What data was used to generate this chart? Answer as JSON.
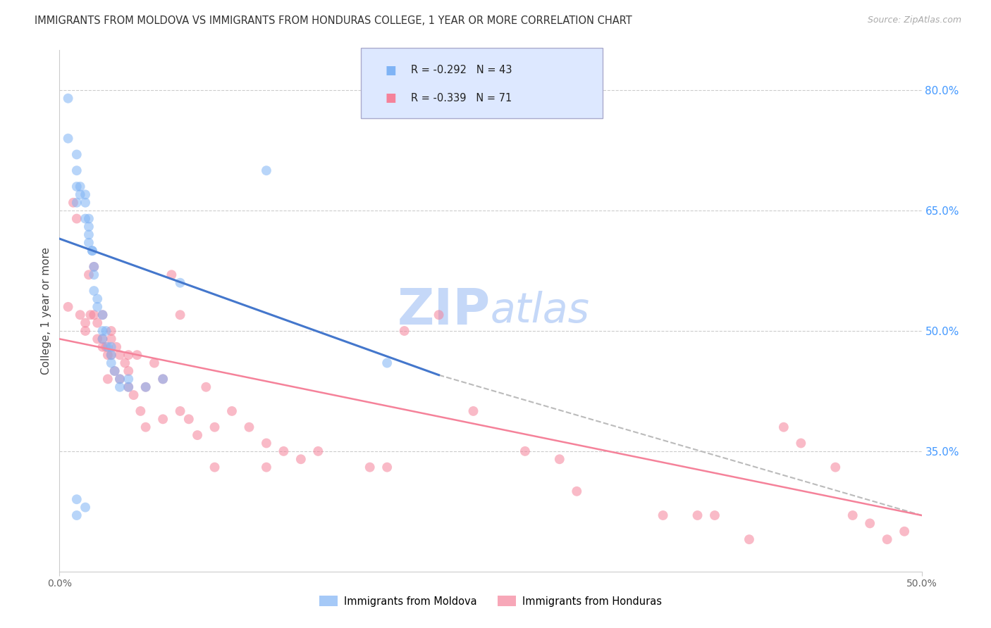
{
  "title": "IMMIGRANTS FROM MOLDOVA VS IMMIGRANTS FROM HONDURAS COLLEGE, 1 YEAR OR MORE CORRELATION CHART",
  "source": "Source: ZipAtlas.com",
  "ylabel": "College, 1 year or more",
  "right_yticks": [
    80.0,
    65.0,
    50.0,
    35.0
  ],
  "xlim": [
    0.0,
    0.5
  ],
  "ylim": [
    0.2,
    0.85
  ],
  "moldova_R": -0.292,
  "moldova_N": 43,
  "honduras_R": -0.339,
  "honduras_N": 71,
  "moldova_color": "#7fb3f5",
  "honduras_color": "#f5829a",
  "moldova_line_color": "#4477cc",
  "honduras_line_color": "#f5829a",
  "dashed_line_color": "#bbbbbb",
  "legend_box_color": "#dde8ff",
  "moldova_scatter_x": [
    0.005,
    0.005,
    0.01,
    0.01,
    0.01,
    0.01,
    0.012,
    0.012,
    0.015,
    0.015,
    0.015,
    0.017,
    0.017,
    0.017,
    0.017,
    0.019,
    0.019,
    0.02,
    0.02,
    0.02,
    0.022,
    0.022,
    0.025,
    0.025,
    0.025,
    0.027,
    0.028,
    0.03,
    0.03,
    0.03,
    0.032,
    0.035,
    0.035,
    0.04,
    0.04,
    0.05,
    0.06,
    0.07,
    0.12,
    0.19,
    0.01,
    0.01,
    0.015
  ],
  "moldova_scatter_y": [
    0.79,
    0.74,
    0.72,
    0.7,
    0.68,
    0.66,
    0.68,
    0.67,
    0.67,
    0.66,
    0.64,
    0.64,
    0.63,
    0.62,
    0.61,
    0.6,
    0.6,
    0.58,
    0.57,
    0.55,
    0.54,
    0.53,
    0.52,
    0.5,
    0.49,
    0.5,
    0.48,
    0.48,
    0.47,
    0.46,
    0.45,
    0.44,
    0.43,
    0.44,
    0.43,
    0.43,
    0.44,
    0.56,
    0.7,
    0.46,
    0.29,
    0.27,
    0.28
  ],
  "honduras_scatter_x": [
    0.005,
    0.008,
    0.01,
    0.012,
    0.015,
    0.015,
    0.017,
    0.018,
    0.02,
    0.02,
    0.022,
    0.022,
    0.025,
    0.025,
    0.025,
    0.027,
    0.028,
    0.028,
    0.03,
    0.03,
    0.03,
    0.032,
    0.033,
    0.035,
    0.035,
    0.038,
    0.04,
    0.04,
    0.04,
    0.043,
    0.045,
    0.047,
    0.05,
    0.05,
    0.055,
    0.06,
    0.06,
    0.065,
    0.07,
    0.07,
    0.075,
    0.08,
    0.085,
    0.09,
    0.09,
    0.1,
    0.11,
    0.12,
    0.12,
    0.13,
    0.14,
    0.15,
    0.18,
    0.19,
    0.2,
    0.22,
    0.24,
    0.27,
    0.29,
    0.3,
    0.35,
    0.37,
    0.38,
    0.4,
    0.42,
    0.43,
    0.45,
    0.46,
    0.47,
    0.48,
    0.49
  ],
  "honduras_scatter_y": [
    0.53,
    0.66,
    0.64,
    0.52,
    0.51,
    0.5,
    0.57,
    0.52,
    0.58,
    0.52,
    0.51,
    0.49,
    0.52,
    0.49,
    0.48,
    0.48,
    0.47,
    0.44,
    0.5,
    0.49,
    0.47,
    0.45,
    0.48,
    0.47,
    0.44,
    0.46,
    0.47,
    0.45,
    0.43,
    0.42,
    0.47,
    0.4,
    0.43,
    0.38,
    0.46,
    0.44,
    0.39,
    0.57,
    0.52,
    0.4,
    0.39,
    0.37,
    0.43,
    0.38,
    0.33,
    0.4,
    0.38,
    0.36,
    0.33,
    0.35,
    0.34,
    0.35,
    0.33,
    0.33,
    0.5,
    0.52,
    0.4,
    0.35,
    0.34,
    0.3,
    0.27,
    0.27,
    0.27,
    0.24,
    0.38,
    0.36,
    0.33,
    0.27,
    0.26,
    0.24,
    0.25
  ],
  "moldova_line_x": [
    0.0,
    0.22
  ],
  "moldova_line_y": [
    0.615,
    0.445
  ],
  "honduras_line_x": [
    0.0,
    0.5
  ],
  "honduras_line_y": [
    0.49,
    0.27
  ],
  "dashed_line_x": [
    0.22,
    0.5
  ],
  "dashed_line_y": [
    0.445,
    0.27
  ],
  "background_color": "#ffffff",
  "grid_color": "#cccccc",
  "title_color": "#333333",
  "right_axis_color": "#4499ff",
  "watermark_zip": "ZIP",
  "watermark_atlas": "atlas",
  "watermark_color_zip": "#c5d8f8",
  "watermark_color_atlas": "#c5d8f8",
  "watermark_fontsize": 52
}
